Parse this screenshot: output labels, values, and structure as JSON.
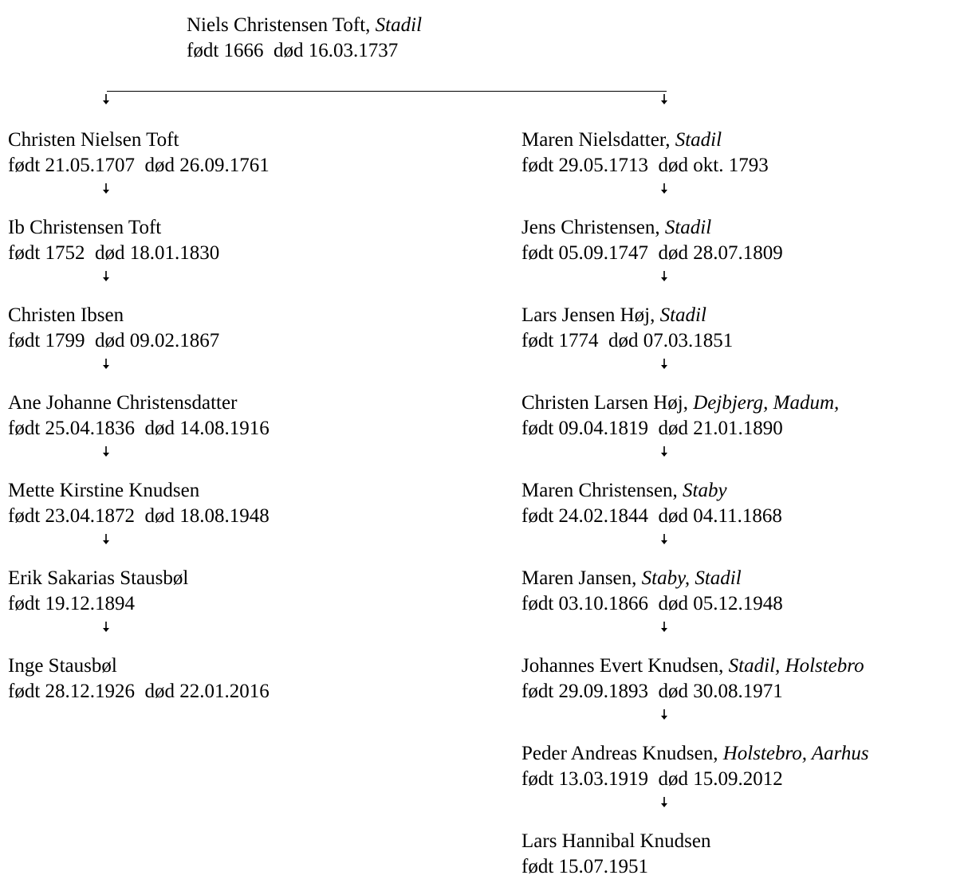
{
  "root": {
    "name": "Niels Christensen Toft",
    "place": "Stadil",
    "born_label": "født",
    "born": "1666",
    "died_label": "død",
    "died": "16.03.1737"
  },
  "left_line": [
    {
      "name": "Christen Nielsen Toft",
      "place": "",
      "born_label": "født",
      "born": "21.05.1707",
      "died_label": "død",
      "died": "26.09.1761"
    },
    {
      "name": "Ib Christensen Toft",
      "place": "",
      "born_label": "født",
      "born": "1752",
      "died_label": "død",
      "died": "18.01.1830"
    },
    {
      "name": "Christen Ibsen",
      "place": "",
      "born_label": "født",
      "born": "1799",
      "died_label": "død",
      "died": "09.02.1867"
    },
    {
      "name": "Ane Johanne Christensdatter",
      "place": "",
      "born_label": "født",
      "born": "25.04.1836",
      "died_label": "død",
      "died": "14.08.1916"
    },
    {
      "name": "Mette Kirstine Knudsen",
      "place": "",
      "born_label": "født",
      "born": "23.04.1872",
      "died_label": "død",
      "died": "18.08.1948"
    },
    {
      "name": "Erik Sakarias Stausbøl",
      "place": "",
      "born_label": "født",
      "born": "19.12.1894",
      "died_label": "",
      "died": ""
    },
    {
      "name": "Inge Stausbøl",
      "place": "",
      "born_label": "født",
      "born": "28.12.1926",
      "died_label": "død",
      "died": "22.01.2016"
    }
  ],
  "right_line": [
    {
      "name": "Maren Nielsdatter",
      "place": "Stadil",
      "born_label": "født",
      "born": "29.05.1713",
      "died_label": "død",
      "died": "okt. 1793"
    },
    {
      "name": "Jens Christensen",
      "place": "Stadil",
      "born_label": "født",
      "born": "05.09.1747",
      "died_label": "død",
      "died": "28.07.1809"
    },
    {
      "name": "Lars Jensen Høj",
      "place": "Stadil",
      "born_label": "født",
      "born": "1774",
      "died_label": "død",
      "died": "07.03.1851"
    },
    {
      "name": "Christen Larsen Høj",
      "place": "Dejbjerg, Madum,",
      "born_label": "født",
      "born": "09.04.1819",
      "died_label": "død",
      "died": "21.01.1890"
    },
    {
      "name": "Maren Christensen",
      "place": "Staby",
      "born_label": "født",
      "born": "24.02.1844",
      "died_label": "død",
      "died": "04.11.1868"
    },
    {
      "name": "Maren Jansen",
      "place": "Staby, Stadil",
      "born_label": "født",
      "born": "03.10.1866",
      "died_label": "død",
      "died": "05.12.1948"
    },
    {
      "name": "Johannes Evert Knudsen",
      "place": "Stadil, Holstebro",
      "born_label": "født",
      "born": "29.09.1893",
      "died_label": "død",
      "died": "30.08.1971"
    },
    {
      "name": "Peder Andreas Knudsen",
      "place": "Holstebro, Aarhus",
      "born_label": "født",
      "born": "13.03.1919",
      "died_label": "død",
      "died": "15.09.2012"
    },
    {
      "name": "Lars Hannibal Knudsen",
      "place": "",
      "born_label": "født",
      "born": "15.07.1951",
      "died_label": "",
      "died": ""
    }
  ]
}
